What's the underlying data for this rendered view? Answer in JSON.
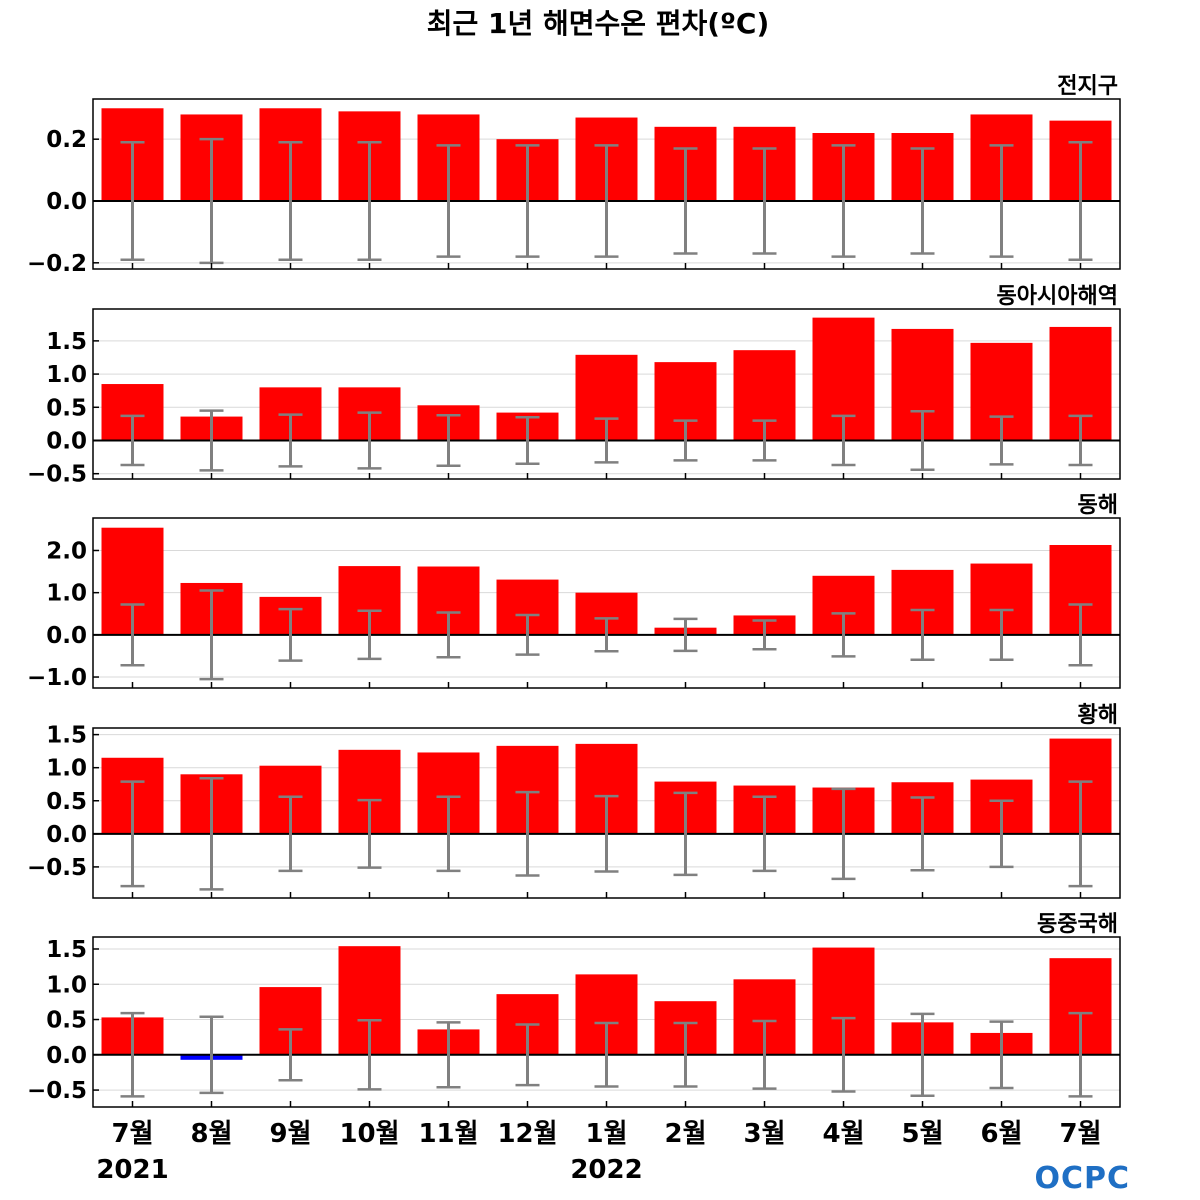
{
  "title": "최근 1년 해면수온 편차(ºC)",
  "logo_text": "OCPC",
  "x_labels": [
    "7월",
    "8월",
    "9월",
    "10월",
    "11월",
    "12월",
    "1월",
    "2월",
    "3월",
    "4월",
    "5월",
    "6월",
    "7월"
  ],
  "years": [
    {
      "label": "2021",
      "index": 0
    },
    {
      "label": "2022",
      "index": 6
    }
  ],
  "colors": {
    "positive": "#ff0000",
    "negative": "#0000ff",
    "errorbar": "#808080"
  },
  "chart_data": [
    {
      "type": "bar",
      "title": "전지구",
      "categories": [
        "7월",
        "8월",
        "9월",
        "10월",
        "11월",
        "12월",
        "1월",
        "2월",
        "3월",
        "4월",
        "5월",
        "6월",
        "7월"
      ],
      "values": [
        0.3,
        0.28,
        0.3,
        0.29,
        0.28,
        0.2,
        0.27,
        0.24,
        0.24,
        0.22,
        0.22,
        0.28,
        0.26
      ],
      "error_range": [
        0.19,
        0.2,
        0.19,
        0.19,
        0.18,
        0.18,
        0.18,
        0.17,
        0.17,
        0.18,
        0.17,
        0.18,
        0.19
      ],
      "ylim": [
        -0.22,
        0.33
      ],
      "yticks": [
        0.2,
        0.0,
        -0.2
      ],
      "ytick_labels": [
        "0.2",
        "0.0",
        "−0.2"
      ]
    },
    {
      "type": "bar",
      "title": "동아시아해역",
      "categories": [
        "7월",
        "8월",
        "9월",
        "10월",
        "11월",
        "12월",
        "1월",
        "2월",
        "3월",
        "4월",
        "5월",
        "6월",
        "7월"
      ],
      "values": [
        0.85,
        0.36,
        0.8,
        0.8,
        0.53,
        0.42,
        1.29,
        1.18,
        1.36,
        1.85,
        1.68,
        1.47,
        1.71
      ],
      "error_range": [
        0.37,
        0.45,
        0.39,
        0.42,
        0.38,
        0.35,
        0.33,
        0.3,
        0.3,
        0.37,
        0.44,
        0.36,
        0.37
      ],
      "ylim": [
        -0.58,
        1.98
      ],
      "yticks": [
        1.5,
        1.0,
        0.5,
        0.0,
        -0.5
      ],
      "ytick_labels": [
        "1.5",
        "1.0",
        "0.5",
        "0.0",
        "−0.5"
      ]
    },
    {
      "type": "bar",
      "title": "동해",
      "categories": [
        "7월",
        "8월",
        "9월",
        "10월",
        "11월",
        "12월",
        "1월",
        "2월",
        "3월",
        "4월",
        "5월",
        "6월",
        "7월"
      ],
      "values": [
        2.54,
        1.23,
        0.9,
        1.63,
        1.62,
        1.31,
        1.0,
        0.17,
        0.46,
        1.4,
        1.54,
        1.69,
        2.13
      ],
      "error_range": [
        0.72,
        1.05,
        0.61,
        0.57,
        0.53,
        0.47,
        0.39,
        0.38,
        0.34,
        0.51,
        0.59,
        0.59,
        0.72
      ],
      "ylim": [
        -1.26,
        2.77
      ],
      "yticks": [
        2.0,
        1.0,
        0.0,
        -1.0
      ],
      "ytick_labels": [
        "2.0",
        "1.0",
        "0.0",
        "−1.0"
      ]
    },
    {
      "type": "bar",
      "title": "황해",
      "categories": [
        "7월",
        "8월",
        "9월",
        "10월",
        "11월",
        "12월",
        "1월",
        "2월",
        "3월",
        "4월",
        "5월",
        "6월",
        "7월"
      ],
      "values": [
        1.15,
        0.9,
        1.03,
        1.27,
        1.23,
        1.33,
        1.36,
        0.79,
        0.73,
        0.7,
        0.78,
        0.82,
        1.44
      ],
      "error_range": [
        0.79,
        0.84,
        0.56,
        0.51,
        0.56,
        0.63,
        0.57,
        0.62,
        0.56,
        0.68,
        0.55,
        0.5,
        0.79
      ],
      "ylim": [
        -0.97,
        1.6
      ],
      "yticks": [
        1.5,
        1.0,
        0.5,
        0.0,
        -0.5
      ],
      "ytick_labels": [
        "1.5",
        "1.0",
        "0.5",
        "0.0",
        "−0.5"
      ]
    },
    {
      "type": "bar",
      "title": "동중국해",
      "categories": [
        "7월",
        "8월",
        "9월",
        "10월",
        "11월",
        "12월",
        "1월",
        "2월",
        "3월",
        "4월",
        "5월",
        "6월",
        "7월"
      ],
      "values": [
        0.53,
        -0.07,
        0.96,
        1.54,
        0.36,
        0.86,
        1.14,
        0.76,
        1.07,
        1.52,
        0.46,
        0.31,
        1.37
      ],
      "error_range": [
        0.59,
        0.54,
        0.36,
        0.49,
        0.46,
        0.43,
        0.45,
        0.45,
        0.48,
        0.52,
        0.58,
        0.47,
        0.59
      ],
      "ylim": [
        -0.74,
        1.67
      ],
      "yticks": [
        1.5,
        1.0,
        0.5,
        0.0,
        -0.5
      ],
      "ytick_labels": [
        "1.5",
        "1.0",
        "0.5",
        "0.0",
        "−0.5"
      ]
    }
  ]
}
